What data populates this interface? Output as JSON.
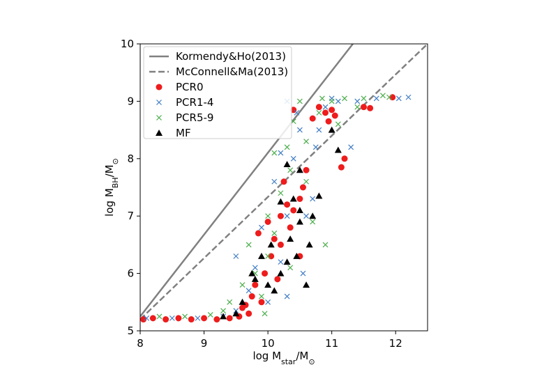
{
  "chart_data": {
    "type": "scatter",
    "xlabel": [
      "log M",
      "star",
      "/M",
      "⊙"
    ],
    "ylabel": [
      "log M",
      "BH",
      "/M",
      "⊙"
    ],
    "xlim": [
      8,
      12.5
    ],
    "xticks": [
      8,
      9,
      10,
      11,
      12
    ],
    "ylim": [
      5,
      10
    ],
    "yticks": [
      5,
      6,
      7,
      8,
      9,
      10
    ],
    "legend": "upper-left",
    "lines": [
      {
        "name": "Kormendy&Ho(2013)",
        "color": "#808080",
        "style": "solid",
        "x": [
          8,
          11.33
        ],
        "y": [
          5.25,
          10
        ]
      },
      {
        "name": "McConnell&Ma(2013)",
        "color": "#808080",
        "style": "dashed",
        "x": [
          8,
          12.5
        ],
        "y": [
          5.2,
          10
        ]
      }
    ],
    "series": [
      {
        "name": "PCR0",
        "color": "#ee1c1c",
        "marker": "circle",
        "x": [
          8.05,
          8.2,
          8.4,
          8.6,
          8.8,
          9.0,
          9.2,
          9.4,
          9.55,
          9.7,
          9.65,
          9.75,
          9.8,
          9.9,
          9.95,
          10.05,
          10.1,
          10.0,
          10.2,
          10.2,
          10.3,
          10.25,
          10.4,
          10.5,
          10.6,
          10.55,
          10.4,
          10.7,
          10.8,
          10.9,
          11.0,
          11.05,
          10.95,
          11.15,
          11.2,
          11.5,
          11.6,
          11.95,
          10.5,
          10.35,
          9.85,
          10.15,
          9.6
        ],
        "y": [
          5.2,
          5.22,
          5.2,
          5.22,
          5.2,
          5.22,
          5.2,
          5.22,
          5.25,
          5.3,
          5.45,
          5.6,
          5.8,
          5.5,
          6.0,
          6.3,
          6.6,
          6.9,
          6.5,
          7.0,
          7.2,
          7.6,
          7.1,
          7.3,
          7.8,
          7.5,
          8.85,
          8.7,
          8.9,
          8.8,
          8.85,
          8.75,
          8.65,
          7.85,
          8.0,
          8.9,
          8.88,
          9.07,
          6.3,
          6.8,
          6.7,
          5.9,
          5.4
        ]
      },
      {
        "name": "PCR1-4",
        "color": "#3f7cc4",
        "marker": "x",
        "x": [
          8.1,
          8.5,
          8.9,
          9.3,
          9.5,
          9.7,
          9.5,
          9.8,
          10.0,
          10.3,
          10.2,
          10.3,
          10.2,
          10.1,
          10.4,
          10.45,
          10.5,
          10.6,
          10.7,
          10.75,
          10.8,
          10.9,
          11.0,
          11.1,
          11.3,
          11.4,
          11.7,
          12.05,
          12.2,
          9.9,
          10.55,
          10.3
        ],
        "y": [
          5.22,
          5.22,
          5.22,
          5.25,
          5.35,
          5.7,
          6.3,
          6.1,
          5.5,
          5.6,
          6.2,
          7.0,
          8.1,
          7.6,
          8.0,
          8.8,
          8.5,
          7.0,
          7.3,
          8.2,
          8.5,
          8.9,
          9.05,
          9.0,
          8.2,
          9.0,
          9.05,
          9.05,
          9.07,
          6.8,
          6.0,
          9.0
        ]
      },
      {
        "name": "PCR5-9",
        "color": "#4aad4a",
        "marker": "x",
        "x": [
          8.3,
          8.7,
          9.1,
          9.3,
          9.4,
          9.6,
          9.7,
          9.8,
          9.9,
          10.0,
          10.0,
          10.1,
          10.2,
          10.1,
          10.3,
          10.35,
          10.4,
          10.5,
          10.6,
          10.6,
          10.7,
          10.8,
          10.85,
          10.9,
          11.0,
          11.1,
          11.2,
          11.4,
          11.5,
          11.8,
          11.9,
          10.35,
          9.95
        ],
        "y": [
          5.25,
          5.25,
          5.28,
          5.35,
          5.5,
          5.8,
          6.5,
          6.0,
          5.6,
          6.3,
          7.0,
          6.7,
          7.4,
          8.1,
          8.2,
          7.8,
          8.65,
          9.0,
          8.3,
          7.6,
          6.9,
          8.8,
          9.05,
          6.5,
          9.0,
          8.6,
          9.05,
          8.9,
          9.05,
          9.1,
          9.07,
          6.1,
          5.3
        ]
      },
      {
        "name": "MF",
        "color": "#000000",
        "marker": "triangle",
        "x": [
          9.3,
          9.5,
          9.6,
          9.8,
          9.75,
          9.9,
          10.0,
          10.05,
          10.1,
          10.2,
          10.3,
          10.35,
          10.45,
          10.5,
          10.4,
          10.3,
          10.5,
          10.5,
          10.65,
          10.7,
          10.8,
          11.0,
          11.1,
          10.2,
          10.6
        ],
        "y": [
          5.25,
          5.3,
          5.5,
          5.9,
          6.0,
          6.3,
          5.8,
          6.5,
          5.7,
          6.0,
          6.2,
          6.6,
          6.3,
          6.9,
          7.3,
          7.9,
          7.8,
          7.1,
          6.5,
          7.0,
          7.35,
          8.5,
          8.15,
          7.25,
          5.8
        ]
      }
    ]
  }
}
